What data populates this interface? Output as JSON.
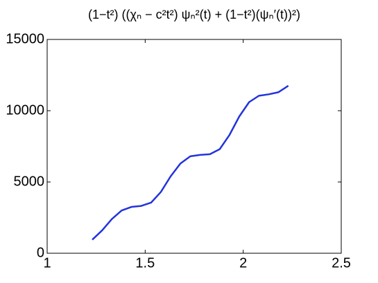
{
  "chart_data": {
    "type": "line",
    "title": "(1−t²) ((χₙ − c²t²) ψₙ²(t) + (1−t²)(ψₙ′(t))²)",
    "x": [
      1.23,
      1.28,
      1.33,
      1.38,
      1.43,
      1.48,
      1.53,
      1.58,
      1.63,
      1.68,
      1.73,
      1.78,
      1.83,
      1.88,
      1.93,
      1.98,
      2.03,
      2.08,
      2.13,
      2.18,
      2.23
    ],
    "series": [
      {
        "color": "#2233dd",
        "values": [
          950,
          1600,
          2400,
          3000,
          3250,
          3320,
          3550,
          4300,
          5400,
          6300,
          6800,
          6900,
          6950,
          7300,
          8300,
          9600,
          10600,
          11050,
          11150,
          11300,
          11750
        ]
      }
    ],
    "xlim": [
      1,
      2.5
    ],
    "xticks": [
      1,
      1.5,
      2,
      2.5
    ],
    "ylim": [
      0,
      15000
    ],
    "yticks": [
      0,
      5000,
      10000,
      15000
    ],
    "grid": false
  }
}
